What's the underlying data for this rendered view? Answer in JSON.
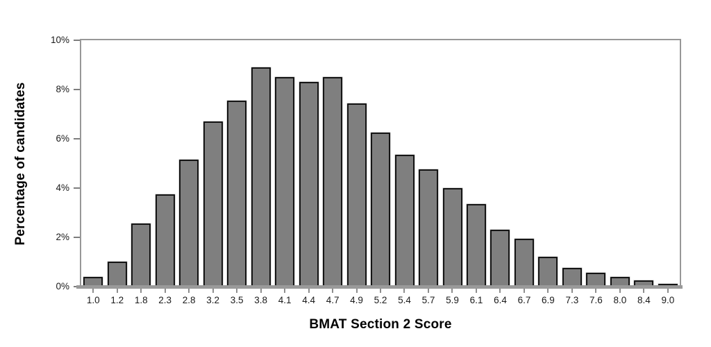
{
  "chart_data": {
    "type": "bar",
    "title": "",
    "xlabel": "BMAT Section 2 Score",
    "ylabel": "Percentage of candidates",
    "categories": [
      "1.0",
      "1.2",
      "1.8",
      "2.3",
      "2.8",
      "3.2",
      "3.5",
      "3.8",
      "4.1",
      "4.4",
      "4.7",
      "4.9",
      "5.2",
      "5.4",
      "5.7",
      "5.9",
      "6.1",
      "6.4",
      "6.7",
      "6.9",
      "7.3",
      "7.6",
      "8.0",
      "8.4",
      "9.0"
    ],
    "values": [
      0.4,
      1.0,
      2.55,
      3.75,
      5.15,
      6.7,
      7.55,
      8.9,
      8.5,
      8.3,
      8.5,
      7.45,
      6.25,
      5.35,
      4.75,
      4.0,
      3.35,
      2.3,
      1.95,
      1.2,
      0.75,
      0.55,
      0.4,
      0.25,
      0.1
    ],
    "ylim": [
      0,
      10
    ],
    "yticks": [
      0,
      2,
      4,
      6,
      8,
      10
    ],
    "ytick_labels": [
      "0%",
      "2%",
      "4%",
      "6%",
      "8%",
      "10%"
    ],
    "grid": false,
    "legend": "none",
    "bar_color": "#7f7f7f",
    "bar_border_color": "#151515",
    "axis_color": "#979797",
    "background_color": "#ffffff"
  }
}
